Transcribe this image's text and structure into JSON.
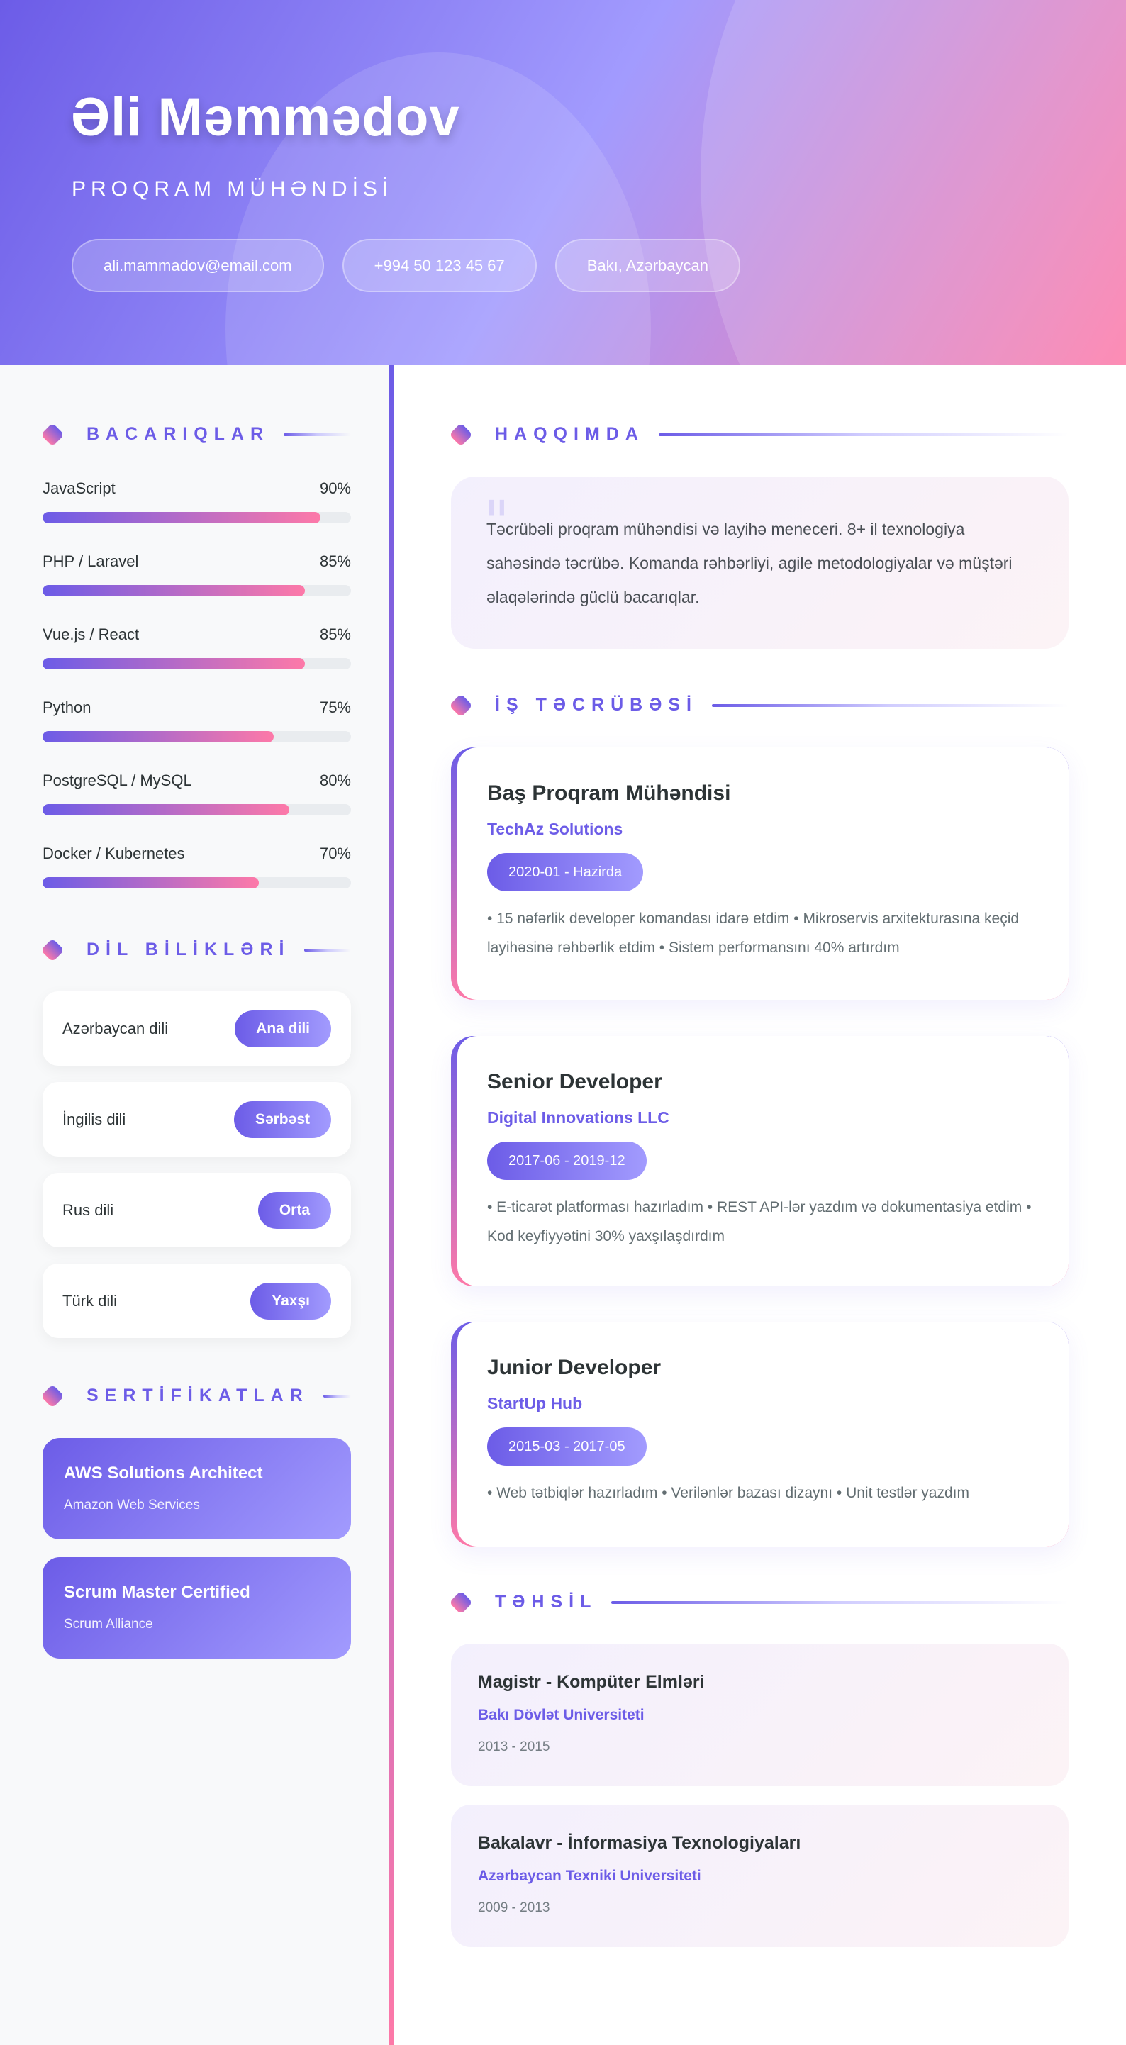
{
  "header": {
    "name": "Əli Məmmədov",
    "role": "PROQRAM MÜHƏNDİSİ",
    "contacts": [
      "ali.mammadov@email.com",
      "+994 50 123 45 67",
      "Bakı, Azərbaycan"
    ]
  },
  "colors": {
    "primary": "#6c5ce7",
    "secondary": "#a29bfe",
    "accent": "#fd79a8"
  },
  "sidebar": {
    "skills_title": "BACARIQLAR",
    "skills": [
      {
        "name": "JavaScript",
        "percent_label": "90%",
        "level": 90
      },
      {
        "name": "PHP / Laravel",
        "percent_label": "85%",
        "level": 85
      },
      {
        "name": "Vue.js / React",
        "percent_label": "85%",
        "level": 85
      },
      {
        "name": "Python",
        "percent_label": "75%",
        "level": 75
      },
      {
        "name": "PostgreSQL / MySQL",
        "percent_label": "80%",
        "level": 80
      },
      {
        "name": "Docker / Kubernetes",
        "percent_label": "70%",
        "level": 70
      }
    ],
    "languages_title": "DİL BİLİKLƏRİ",
    "languages": [
      {
        "name": "Azərbaycan dili",
        "level": "Ana dili"
      },
      {
        "name": "İngilis dili",
        "level": "Sərbəst"
      },
      {
        "name": "Rus dili",
        "level": "Orta"
      },
      {
        "name": "Türk dili",
        "level": "Yaxşı"
      }
    ],
    "certificates_title": "SERTİFİKATLAR",
    "certificates": [
      {
        "title": "AWS Solutions Architect",
        "org": "Amazon Web Services"
      },
      {
        "title": "Scrum Master Certified",
        "org": "Scrum Alliance"
      }
    ]
  },
  "main": {
    "about_title": "HAQQIMDA",
    "about_quote_icon": "quote-icon",
    "about_text": "Təcrübəli proqram mühəndisi və layihə meneceri. 8+ il texnologiya sahəsində təcrübə. Komanda rəhbərliyi, agile metodologiyalar və müştəri əlaqələrində güclü bacarıqlar.",
    "experience_title": "İŞ TƏCRÜBƏSİ",
    "experience": [
      {
        "title": "Baş Proqram Mühəndisi",
        "company": "TechAz Solutions",
        "date": "2020-01 - Hazirda",
        "description": "• 15 nəfərlik developer komandası idarə etdim • Mikroservis arxitekturasına keçid layihəsinə rəhbərlik etdim • Sistem performansını 40% artırdım"
      },
      {
        "title": "Senior Developer",
        "company": "Digital Innovations LLC",
        "date": "2017-06 - 2019-12",
        "description": "• E-ticarət platforması hazırladım • REST API-lər yazdım və dokumentasiya etdim • Kod keyfiyyətini 30% yaxşılaşdırdım"
      },
      {
        "title": "Junior Developer",
        "company": "StartUp Hub",
        "date": "2015-03 - 2017-05",
        "description": "• Web tətbiqlər hazırladım • Verilənlər bazası dizaynı • Unit testlər yazdım"
      }
    ],
    "education_title": "TƏHSİL",
    "education": [
      {
        "degree": "Magistr - Kompüter Elmləri",
        "school": "Bakı Dövlət Universiteti",
        "years": "2013 - 2015"
      },
      {
        "degree": "Bakalavr - İnformasiya Texnologiyaları",
        "school": "Azərbaycan Texniki Universiteti",
        "years": "2009 - 2013"
      }
    ]
  }
}
